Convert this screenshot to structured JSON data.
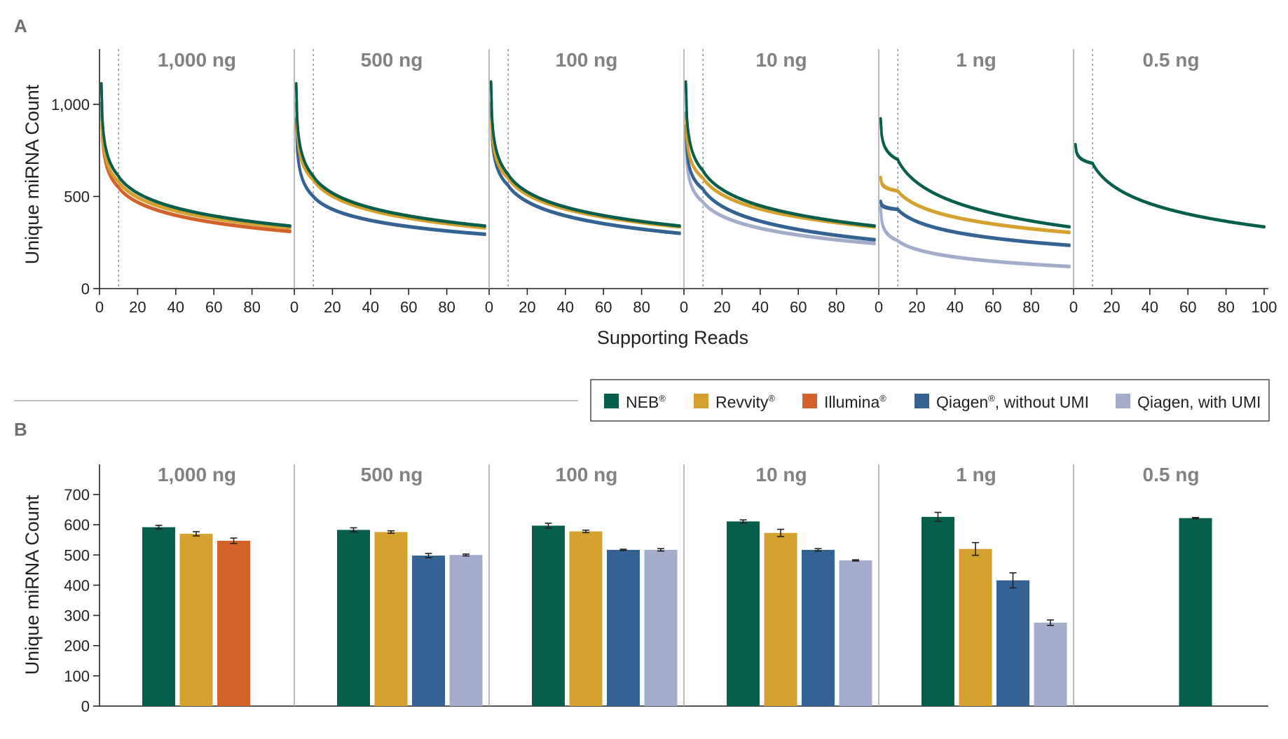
{
  "colors": {
    "NEB": "#075e4a",
    "Revvity": "#d4a02e",
    "Illumina": "#d2622a",
    "Qiagen_noUMI": "#336293",
    "Qiagen_UMI": "#a3adcb",
    "axis": "#231f20",
    "separator": "#a7a9ac",
    "dotted": "#939598",
    "group_title": "#808285",
    "panel_letter": "#6d6e71"
  },
  "legend": {
    "items": [
      {
        "key": "NEB",
        "label": "NEB",
        "sup": "®"
      },
      {
        "key": "Revvity",
        "label": "Revvity",
        "sup": "®"
      },
      {
        "key": "Illumina",
        "label": "Illumina",
        "sup": "®"
      },
      {
        "key": "Qiagen_noUMI",
        "label": "Qiagen",
        "sup": "®",
        "suffix": ", without UMI"
      },
      {
        "key": "Qiagen_UMI",
        "label": "Qiagen, with UMI",
        "sup": "",
        "suffix": ""
      }
    ]
  },
  "chart_data": [
    {
      "panel": "A",
      "type": "line",
      "ylabel": "Unique miRNA Count",
      "xlabel": "Supporting Reads",
      "ylim": [
        0,
        1300
      ],
      "yticks": [
        0,
        500,
        1000
      ],
      "ytick_labels": [
        "0",
        "500",
        "1,000"
      ],
      "xlim": [
        0,
        100
      ],
      "xticks": [
        0,
        20,
        40,
        60,
        80
      ],
      "xticks_last_facet": [
        0,
        20,
        40,
        60,
        80,
        100
      ],
      "reference_line_x": 10,
      "facets": [
        {
          "title": "1,000 ng",
          "series": [
            {
              "key": "NEB",
              "replicates": 2,
              "y_at_1": 1110,
              "y_at_10": 610,
              "y_at_100": 340
            },
            {
              "key": "Revvity",
              "replicates": 2,
              "y_at_1": 1000,
              "y_at_10": 580,
              "y_at_100": 330
            },
            {
              "key": "Illumina",
              "replicates": 2,
              "y_at_1": 980,
              "y_at_10": 550,
              "y_at_100": 310
            }
          ]
        },
        {
          "title": "500 ng",
          "series": [
            {
              "key": "NEB",
              "replicates": 2,
              "y_at_1": 1110,
              "y_at_10": 610,
              "y_at_100": 340
            },
            {
              "key": "Revvity",
              "replicates": 2,
              "y_at_1": 1000,
              "y_at_10": 590,
              "y_at_100": 330
            },
            {
              "key": "Qiagen_noUMI",
              "replicates": 2,
              "y_at_1": 920,
              "y_at_10": 500,
              "y_at_100": 295
            }
          ]
        },
        {
          "title": "100 ng",
          "series": [
            {
              "key": "NEB",
              "replicates": 2,
              "y_at_1": 1120,
              "y_at_10": 620,
              "y_at_100": 340
            },
            {
              "key": "Revvity",
              "replicates": 2,
              "y_at_1": 1000,
              "y_at_10": 600,
              "y_at_100": 335
            },
            {
              "key": "Qiagen_noUMI",
              "replicates": 2,
              "y_at_1": 980,
              "y_at_10": 560,
              "y_at_100": 300
            }
          ]
        },
        {
          "title": "10 ng",
          "series": [
            {
              "key": "NEB",
              "replicates": 2,
              "y_at_1": 1120,
              "y_at_10": 640,
              "y_at_100": 340
            },
            {
              "key": "Revvity",
              "replicates": 2,
              "y_at_1": 950,
              "y_at_10": 600,
              "y_at_100": 335
            },
            {
              "key": "Qiagen_noUMI",
              "replicates": 2,
              "y_at_1": 880,
              "y_at_10": 540,
              "y_at_100": 265
            },
            {
              "key": "Qiagen_UMI",
              "replicates": 2,
              "y_at_1": 820,
              "y_at_10": 470,
              "y_at_100": 245
            }
          ]
        },
        {
          "title": "1 ng",
          "series": [
            {
              "key": "NEB",
              "replicates": 2,
              "y_at_1": 920,
              "y_at_10": 700,
              "y_at_100": 335
            },
            {
              "key": "Revvity",
              "replicates": 2,
              "y_at_1": 600,
              "y_at_10": 530,
              "y_at_100": 305
            },
            {
              "key": "Qiagen_noUMI",
              "replicates": 2,
              "y_at_1": 470,
              "y_at_10": 430,
              "y_at_100": 235
            },
            {
              "key": "Qiagen_UMI",
              "replicates": 2,
              "y_at_1": 440,
              "y_at_10": 260,
              "y_at_100": 120
            }
          ]
        },
        {
          "title": "0.5 ng",
          "series": [
            {
              "key": "NEB",
              "replicates": 2,
              "y_at_1": 780,
              "y_at_10": 680,
              "y_at_100": 335
            }
          ]
        }
      ]
    },
    {
      "panel": "B",
      "type": "bar",
      "ylabel": "Unique miRNA Count",
      "ylim": [
        0,
        700
      ],
      "yticks": [
        0,
        100,
        200,
        300,
        400,
        500,
        600,
        700
      ],
      "groups": [
        {
          "title": "1,000 ng",
          "bars": [
            {
              "key": "NEB",
              "value": 592,
              "err": 6
            },
            {
              "key": "Revvity",
              "value": 570,
              "err": 7
            },
            {
              "key": "Illumina",
              "value": 547,
              "err": 9
            }
          ]
        },
        {
          "title": "500 ng",
          "bars": [
            {
              "key": "NEB",
              "value": 583,
              "err": 7
            },
            {
              "key": "Revvity",
              "value": 576,
              "err": 4
            },
            {
              "key": "Qiagen_noUMI",
              "value": 498,
              "err": 7
            },
            {
              "key": "Qiagen_UMI",
              "value": 500,
              "err": 3
            }
          ]
        },
        {
          "title": "100 ng",
          "bars": [
            {
              "key": "NEB",
              "value": 597,
              "err": 8
            },
            {
              "key": "Revvity",
              "value": 578,
              "err": 4
            },
            {
              "key": "Qiagen_noUMI",
              "value": 517,
              "err": 2
            },
            {
              "key": "Qiagen_UMI",
              "value": 517,
              "err": 4
            }
          ]
        },
        {
          "title": "10 ng",
          "bars": [
            {
              "key": "NEB",
              "value": 611,
              "err": 5
            },
            {
              "key": "Revvity",
              "value": 573,
              "err": 12
            },
            {
              "key": "Qiagen_noUMI",
              "value": 517,
              "err": 4
            },
            {
              "key": "Qiagen_UMI",
              "value": 482,
              "err": 2
            }
          ]
        },
        {
          "title": "1 ng",
          "bars": [
            {
              "key": "NEB",
              "value": 626,
              "err": 15
            },
            {
              "key": "Revvity",
              "value": 520,
              "err": 21
            },
            {
              "key": "Qiagen_noUMI",
              "value": 416,
              "err": 25
            },
            {
              "key": "Qiagen_UMI",
              "value": 276,
              "err": 9
            }
          ]
        },
        {
          "title": "0.5 ng",
          "bars": [
            {
              "key": "NEB",
              "value": 622,
              "err": 2
            }
          ]
        }
      ]
    }
  ]
}
